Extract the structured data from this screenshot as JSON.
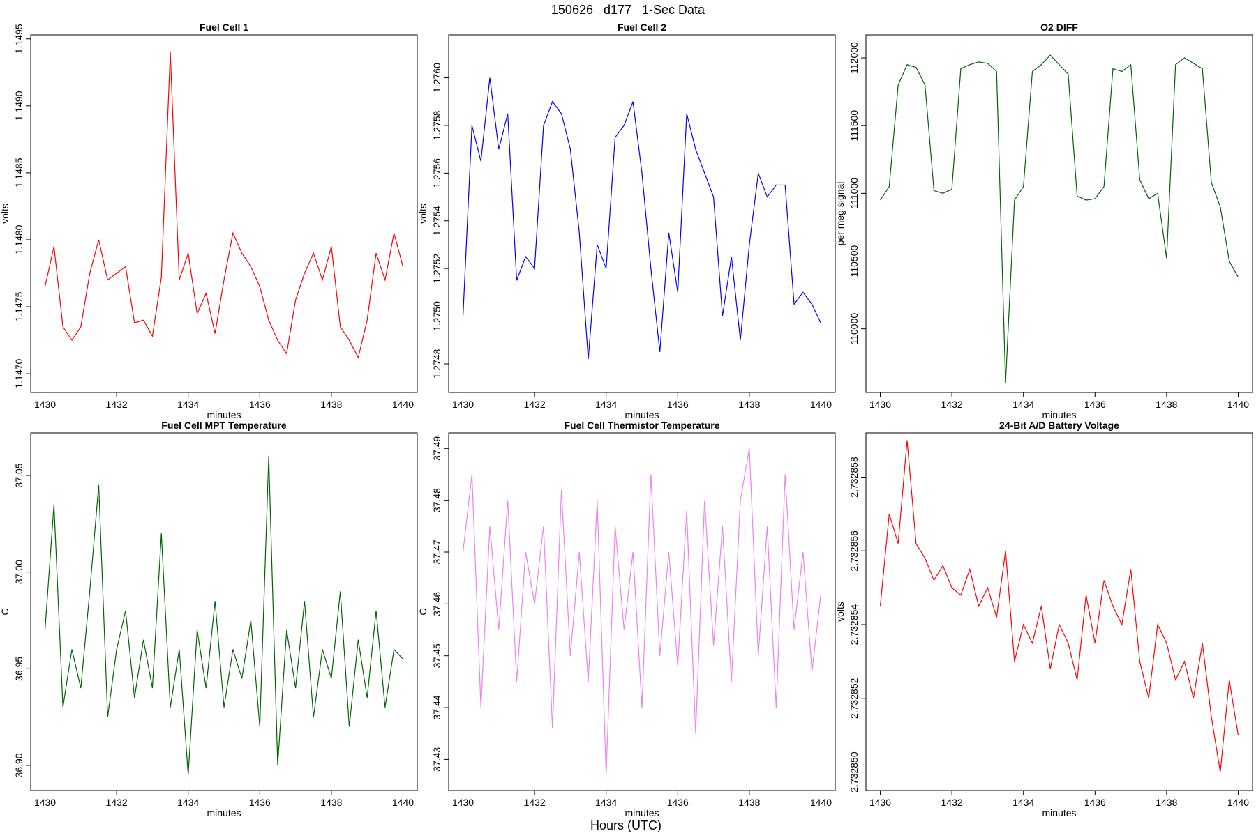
{
  "title": "150626   d177   1-Sec Data",
  "x_label": "Hours (UTC)",
  "chart_data": [
    {
      "type": "line",
      "title": "Fuel Cell 1",
      "xlabel": "minutes",
      "ylabel": "volts",
      "color": "#ff0000",
      "x": [
        1430,
        1430.25,
        1430.5,
        1430.75,
        1431,
        1431.25,
        1431.5,
        1431.75,
        1432,
        1432.25,
        1432.5,
        1432.75,
        1433,
        1433.25,
        1433.5,
        1433.75,
        1434,
        1434.25,
        1434.5,
        1434.75,
        1435,
        1435.25,
        1435.5,
        1435.75,
        1436,
        1436.25,
        1436.5,
        1436.75,
        1437,
        1437.25,
        1437.5,
        1437.75,
        1438,
        1438.25,
        1438.5,
        1438.75,
        1439,
        1439.25,
        1439.5,
        1439.75,
        1440
      ],
      "values": [
        1.14765,
        1.14795,
        1.14735,
        1.14725,
        1.14735,
        1.14775,
        1.148,
        1.1477,
        1.14775,
        1.1478,
        1.14738,
        1.1474,
        1.14728,
        1.14772,
        1.1494,
        1.1477,
        1.1479,
        1.14745,
        1.1476,
        1.1473,
        1.1477,
        1.14805,
        1.1479,
        1.1478,
        1.14765,
        1.1474,
        1.14725,
        1.14715,
        1.14755,
        1.14775,
        1.1479,
        1.1477,
        1.14795,
        1.14735,
        1.14725,
        1.14712,
        1.1474,
        1.1479,
        1.1477,
        1.14805,
        1.1478
      ],
      "xlim": [
        1429.6,
        1440.4
      ],
      "xticks": [
        1430,
        1432,
        1434,
        1436,
        1438,
        1440
      ],
      "ylim": [
        1.14686,
        1.14953
      ],
      "yticks": [
        {
          "value": 1.147,
          "label": "1.1470"
        },
        1.1475,
        {
          "value": 1.148,
          "label": "1.1480"
        },
        1.1485,
        {
          "value": 1.149,
          "label": "1.1490"
        },
        1.1495
      ]
    },
    {
      "type": "line",
      "title": "Fuel Cell 2",
      "xlabel": "minutes",
      "ylabel": "volts",
      "color": "#0000ff",
      "x": [
        1430,
        1430.25,
        1430.5,
        1430.75,
        1431,
        1431.25,
        1431.5,
        1431.75,
        1432,
        1432.25,
        1432.5,
        1432.75,
        1433,
        1433.25,
        1433.5,
        1433.75,
        1434,
        1434.25,
        1434.5,
        1434.75,
        1435,
        1435.25,
        1435.5,
        1435.75,
        1436,
        1436.25,
        1436.5,
        1436.75,
        1437,
        1437.25,
        1437.5,
        1437.75,
        1438,
        1438.25,
        1438.5,
        1438.75,
        1439,
        1439.25,
        1439.5,
        1439.75,
        1440
      ],
      "values": [
        1.275,
        1.2758,
        1.27565,
        1.276,
        1.2757,
        1.27585,
        1.27515,
        1.27525,
        1.2752,
        1.2758,
        1.2759,
        1.27585,
        1.2757,
        1.27535,
        1.27482,
        1.2753,
        1.2752,
        1.27575,
        1.2758,
        1.2759,
        1.2756,
        1.2752,
        1.27485,
        1.27535,
        1.2751,
        1.27585,
        1.2757,
        1.2756,
        1.2755,
        1.275,
        1.27525,
        1.2749,
        1.2753,
        1.2756,
        1.2755,
        1.27555,
        1.27555,
        1.27505,
        1.2751,
        1.27505,
        1.27497
      ],
      "xlim": [
        1429.6,
        1440.4
      ],
      "xticks": [
        1430,
        1432,
        1434,
        1436,
        1438,
        1440
      ],
      "ylim": [
        1.27468,
        1.27618
      ],
      "yticks": [
        1.2748,
        {
          "value": 1.275,
          "label": "1.2750"
        },
        1.2752,
        1.2754,
        1.2756,
        1.2758,
        {
          "value": 1.276,
          "label": "1.2760"
        }
      ]
    },
    {
      "type": "line",
      "title": "O2 DIFF",
      "xlabel": "minutes",
      "ylabel": "per meg signal",
      "color": "#006400",
      "x": [
        1430,
        1430.25,
        1430.5,
        1430.75,
        1431,
        1431.25,
        1431.5,
        1431.75,
        1432,
        1432.25,
        1432.5,
        1432.75,
        1433,
        1433.25,
        1433.5,
        1433.75,
        1434,
        1434.25,
        1434.5,
        1434.75,
        1435,
        1435.25,
        1435.5,
        1435.75,
        1436,
        1436.25,
        1436.5,
        1436.75,
        1437,
        1437.25,
        1437.5,
        1437.75,
        1438,
        1438.25,
        1438.5,
        1438.75,
        1439,
        1439.25,
        1439.5,
        1439.75,
        1440
      ],
      "values": [
        110950,
        111050,
        111800,
        111950,
        111930,
        111800,
        111020,
        111000,
        111030,
        111920,
        111950,
        111970,
        111960,
        111900,
        109600,
        110950,
        111050,
        111900,
        111950,
        112020,
        111950,
        111880,
        110980,
        110950,
        110960,
        111050,
        111920,
        111900,
        111950,
        111100,
        110960,
        111000,
        110520,
        111950,
        112000,
        111960,
        111920,
        111080,
        110900,
        110500,
        110380
      ],
      "xlim": [
        1429.6,
        1440.4
      ],
      "xticks": [
        1430,
        1432,
        1434,
        1436,
        1438,
        1440
      ],
      "ylim": [
        109530,
        112170
      ],
      "yticks": [
        110000,
        110500,
        111000,
        111500,
        112000
      ]
    },
    {
      "type": "line",
      "title": "Fuel Cell MPT Temperature",
      "xlabel": "minutes",
      "ylabel": "C",
      "color": "#006400",
      "x": [
        1430,
        1430.25,
        1430.5,
        1430.75,
        1431,
        1431.25,
        1431.5,
        1431.75,
        1432,
        1432.25,
        1432.5,
        1432.75,
        1433,
        1433.25,
        1433.5,
        1433.75,
        1434,
        1434.25,
        1434.5,
        1434.75,
        1435,
        1435.25,
        1435.5,
        1435.75,
        1436,
        1436.25,
        1436.5,
        1436.75,
        1437,
        1437.25,
        1437.5,
        1437.75,
        1438,
        1438.25,
        1438.5,
        1438.75,
        1439,
        1439.25,
        1439.5,
        1439.75,
        1440
      ],
      "values": [
        36.97,
        37.035,
        36.93,
        36.96,
        36.94,
        36.99,
        37.045,
        36.925,
        36.96,
        36.98,
        36.935,
        36.965,
        36.94,
        37.02,
        36.93,
        36.96,
        36.895,
        36.97,
        36.94,
        36.985,
        36.93,
        36.96,
        36.945,
        36.975,
        36.92,
        37.06,
        36.9,
        36.97,
        36.94,
        36.985,
        36.925,
        36.96,
        36.945,
        36.99,
        36.92,
        36.965,
        36.935,
        36.98,
        36.93,
        36.96,
        36.955
      ],
      "xlim": [
        1429.6,
        1440.4
      ],
      "xticks": [
        1430,
        1432,
        1434,
        1436,
        1438,
        1440
      ],
      "ylim": [
        36.887,
        37.072
      ],
      "yticks": [
        {
          "value": 36.9,
          "label": "36.90"
        },
        36.95,
        {
          "value": 37,
          "label": "37.00"
        },
        37.05
      ]
    },
    {
      "type": "line",
      "title": "Fuel Cell Thermistor Temperature",
      "xlabel": "minutes",
      "ylabel": "C",
      "color": "#ee82ee",
      "x": [
        1430,
        1430.25,
        1430.5,
        1430.75,
        1431,
        1431.25,
        1431.5,
        1431.75,
        1432,
        1432.25,
        1432.5,
        1432.75,
        1433,
        1433.25,
        1433.5,
        1433.75,
        1434,
        1434.25,
        1434.5,
        1434.75,
        1435,
        1435.25,
        1435.5,
        1435.75,
        1436,
        1436.25,
        1436.5,
        1436.75,
        1437,
        1437.25,
        1437.5,
        1437.75,
        1438,
        1438.25,
        1438.5,
        1438.75,
        1439,
        1439.25,
        1439.5,
        1439.75,
        1440
      ],
      "values": [
        37.47,
        37.485,
        37.44,
        37.475,
        37.455,
        37.48,
        37.445,
        37.47,
        37.46,
        37.475,
        37.436,
        37.482,
        37.45,
        37.47,
        37.445,
        37.48,
        37.427,
        37.475,
        37.455,
        37.47,
        37.44,
        37.485,
        37.45,
        37.47,
        37.448,
        37.478,
        37.435,
        37.48,
        37.452,
        37.475,
        37.445,
        37.48,
        37.49,
        37.45,
        37.475,
        37.44,
        37.485,
        37.455,
        37.47,
        37.447,
        37.462
      ],
      "xlim": [
        1429.6,
        1440.4
      ],
      "xticks": [
        1430,
        1432,
        1434,
        1436,
        1438,
        1440
      ],
      "ylim": [
        37.424,
        37.493
      ],
      "yticks": [
        37.43,
        37.44,
        37.45,
        37.46,
        37.47,
        37.48,
        37.49
      ]
    },
    {
      "type": "line",
      "title": "24-Bit A/D Battery Voltage",
      "xlabel": "minutes",
      "ylabel": "volts",
      "color": "#ff0000",
      "x": [
        1430,
        1430.25,
        1430.5,
        1430.75,
        1431,
        1431.25,
        1431.5,
        1431.75,
        1432,
        1432.25,
        1432.5,
        1432.75,
        1433,
        1433.25,
        1433.5,
        1433.75,
        1434,
        1434.25,
        1434.5,
        1434.75,
        1435,
        1435.25,
        1435.5,
        1435.75,
        1436,
        1436.25,
        1436.5,
        1436.75,
        1437,
        1437.25,
        1437.5,
        1437.75,
        1438,
        1438.25,
        1438.5,
        1438.75,
        1439,
        1439.25,
        1439.5,
        1439.75,
        1440
      ],
      "values": [
        2.7328545,
        2.732857,
        2.7328562,
        2.732859,
        2.7328562,
        2.7328558,
        2.7328552,
        2.7328556,
        2.732855,
        2.7328548,
        2.7328555,
        2.7328545,
        2.732855,
        2.7328542,
        2.732856,
        2.732853,
        2.732854,
        2.7328535,
        2.7328545,
        2.7328528,
        2.732854,
        2.7328535,
        2.7328525,
        2.7328548,
        2.7328535,
        2.7328552,
        2.7328545,
        2.732854,
        2.7328555,
        2.732853,
        2.732852,
        2.732854,
        2.7328535,
        2.7328525,
        2.732853,
        2.732852,
        2.7328535,
        2.7328515,
        2.73285,
        2.7328525,
        2.732851
      ],
      "xlim": [
        1429.6,
        1440.4
      ],
      "xticks": [
        1430,
        1432,
        1434,
        1436,
        1438,
        1440
      ],
      "ylim": [
        2.7328495,
        2.7328592
      ],
      "yticks": [
        {
          "value": 2.73285,
          "label": "2.732850"
        },
        2.732852,
        2.732854,
        2.732856,
        2.732858
      ]
    }
  ]
}
